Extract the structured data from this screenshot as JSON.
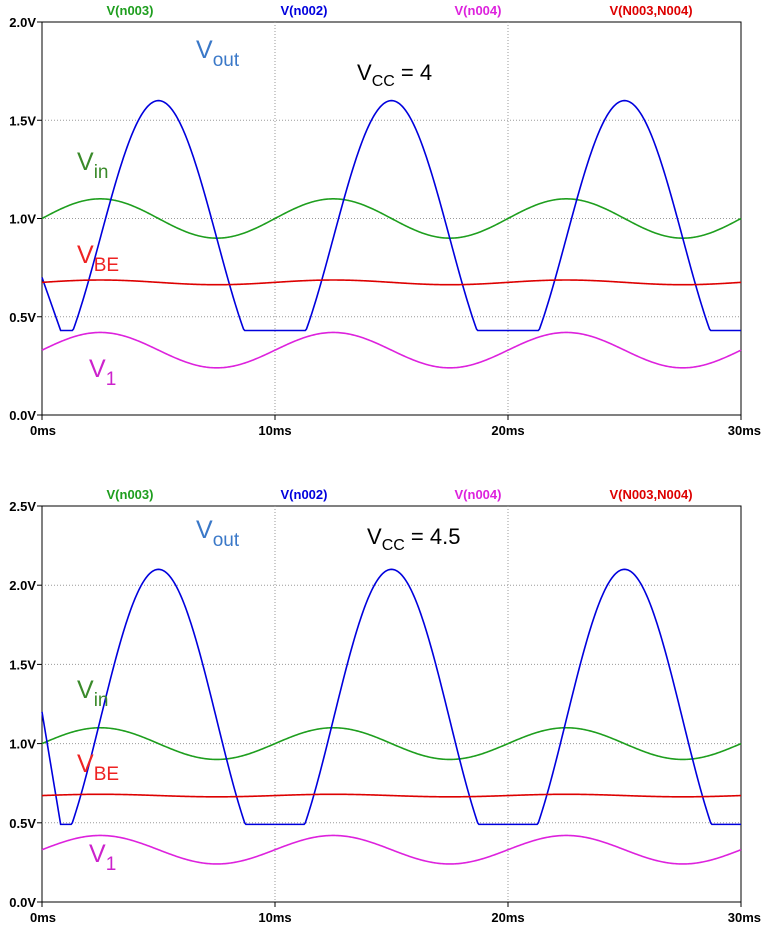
{
  "chart_data": [
    {
      "type": "line",
      "title": "",
      "xlabel": "",
      "ylabel": "",
      "xlim": [
        0,
        30
      ],
      "ylim": [
        0,
        2.0
      ],
      "x_ticks": [
        "0ms",
        "10ms",
        "20ms",
        "30ms"
      ],
      "y_ticks": [
        "0.0V",
        "0.5V",
        "1.0V",
        "1.5V",
        "2.0V"
      ],
      "grid": true,
      "legend_position": "top",
      "legend": [
        {
          "label": "V(n003)",
          "color": "#1e9e1e"
        },
        {
          "label": "V(n002)",
          "color": "#0000dd"
        },
        {
          "label": "V(n004)",
          "color": "#dd22dd"
        },
        {
          "label": "V(N003,N004)",
          "color": "#dd0000"
        }
      ],
      "annotations": {
        "vcc_main": "V",
        "vcc_sub": "CC",
        "vcc_value": " = 4",
        "vout_main": "V",
        "vout_sub": "out",
        "vin_main": "V",
        "vin_sub": "in",
        "vbe_main": "V",
        "vbe_sub": "BE",
        "v1_main": "V",
        "v1_sub": "1"
      },
      "series": [
        {
          "color": "#1e9e1e",
          "offset": 1.0,
          "amplitude": 0.1,
          "period_ms": 10
        },
        {
          "color": "#0000dd",
          "offset": 0.9,
          "amplitude": 0.7,
          "period_ms": 10,
          "floor": 0.43,
          "start": 0.7
        },
        {
          "color": "#dd22dd",
          "offset": 0.33,
          "amplitude": 0.09,
          "period_ms": 10
        },
        {
          "color": "#dd0000",
          "offset": 0.675,
          "amplitude": 0.012,
          "period_ms": 10
        }
      ]
    },
    {
      "type": "line",
      "title": "",
      "xlabel": "",
      "ylabel": "",
      "xlim": [
        0,
        30
      ],
      "ylim": [
        0,
        2.5
      ],
      "x_ticks": [
        "0ms",
        "10ms",
        "20ms",
        "30ms"
      ],
      "y_ticks": [
        "0.0V",
        "0.5V",
        "1.0V",
        "1.5V",
        "2.0V",
        "2.5V"
      ],
      "grid": true,
      "legend_position": "top",
      "legend": [
        {
          "label": "V(n003)",
          "color": "#1e9e1e"
        },
        {
          "label": "V(n002)",
          "color": "#0000dd"
        },
        {
          "label": "V(n004)",
          "color": "#dd22dd"
        },
        {
          "label": "V(N003,N004)",
          "color": "#dd0000"
        }
      ],
      "annotations": {
        "vcc_main": "V",
        "vcc_sub": "CC",
        "vcc_value": " = 4.5",
        "vout_main": "V",
        "vout_sub": "out",
        "vin_main": "V",
        "vin_sub": "in",
        "vbe_main": "V",
        "vbe_sub": "BE",
        "v1_main": "V",
        "v1_sub": "1"
      },
      "series": [
        {
          "color": "#1e9e1e",
          "offset": 1.0,
          "amplitude": 0.1,
          "period_ms": 10
        },
        {
          "color": "#0000dd",
          "offset": 1.15,
          "amplitude": 0.95,
          "period_ms": 10,
          "floor": 0.49,
          "start": 1.2
        },
        {
          "color": "#dd22dd",
          "offset": 0.33,
          "amplitude": 0.09,
          "period_ms": 10
        },
        {
          "color": "#dd0000",
          "offset": 0.672,
          "amplitude": 0.008,
          "period_ms": 10
        }
      ]
    }
  ]
}
